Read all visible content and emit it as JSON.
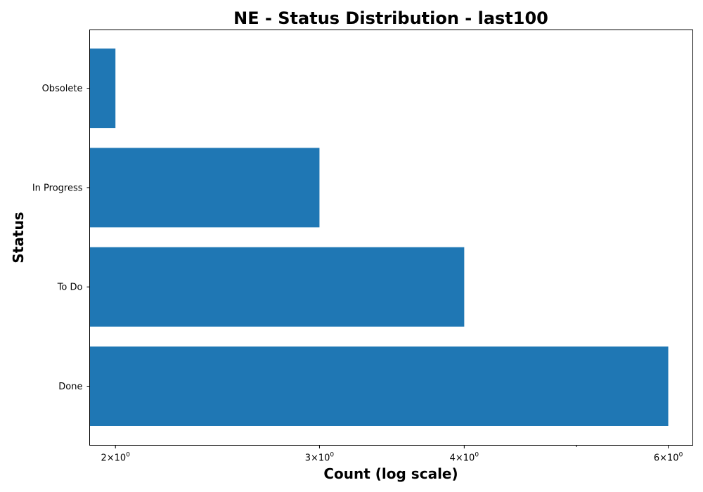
{
  "chart_data": {
    "type": "bar",
    "orientation": "horizontal",
    "title": "NE - Status Distribution - last100",
    "xlabel": "Count (log scale)",
    "ylabel": "Status",
    "x_scale": "log",
    "xlim": [
      1.9,
      6.3
    ],
    "categories": [
      "Done",
      "To Do",
      "In Progress",
      "Obsolete"
    ],
    "values": [
      6,
      4,
      3,
      2
    ],
    "x_ticks": [
      {
        "value": 2,
        "base": "2",
        "sup": "0"
      },
      {
        "value": 3,
        "base": "3",
        "sup": "0"
      },
      {
        "value": 4,
        "base": "4",
        "sup": "0"
      },
      {
        "value": 6,
        "base": "6",
        "sup": "0"
      }
    ],
    "x_ticks_times": "×10",
    "x_minor_ticks": [
      5
    ],
    "bar_color": "#1f77b4",
    "grid": false,
    "legend": "none"
  }
}
